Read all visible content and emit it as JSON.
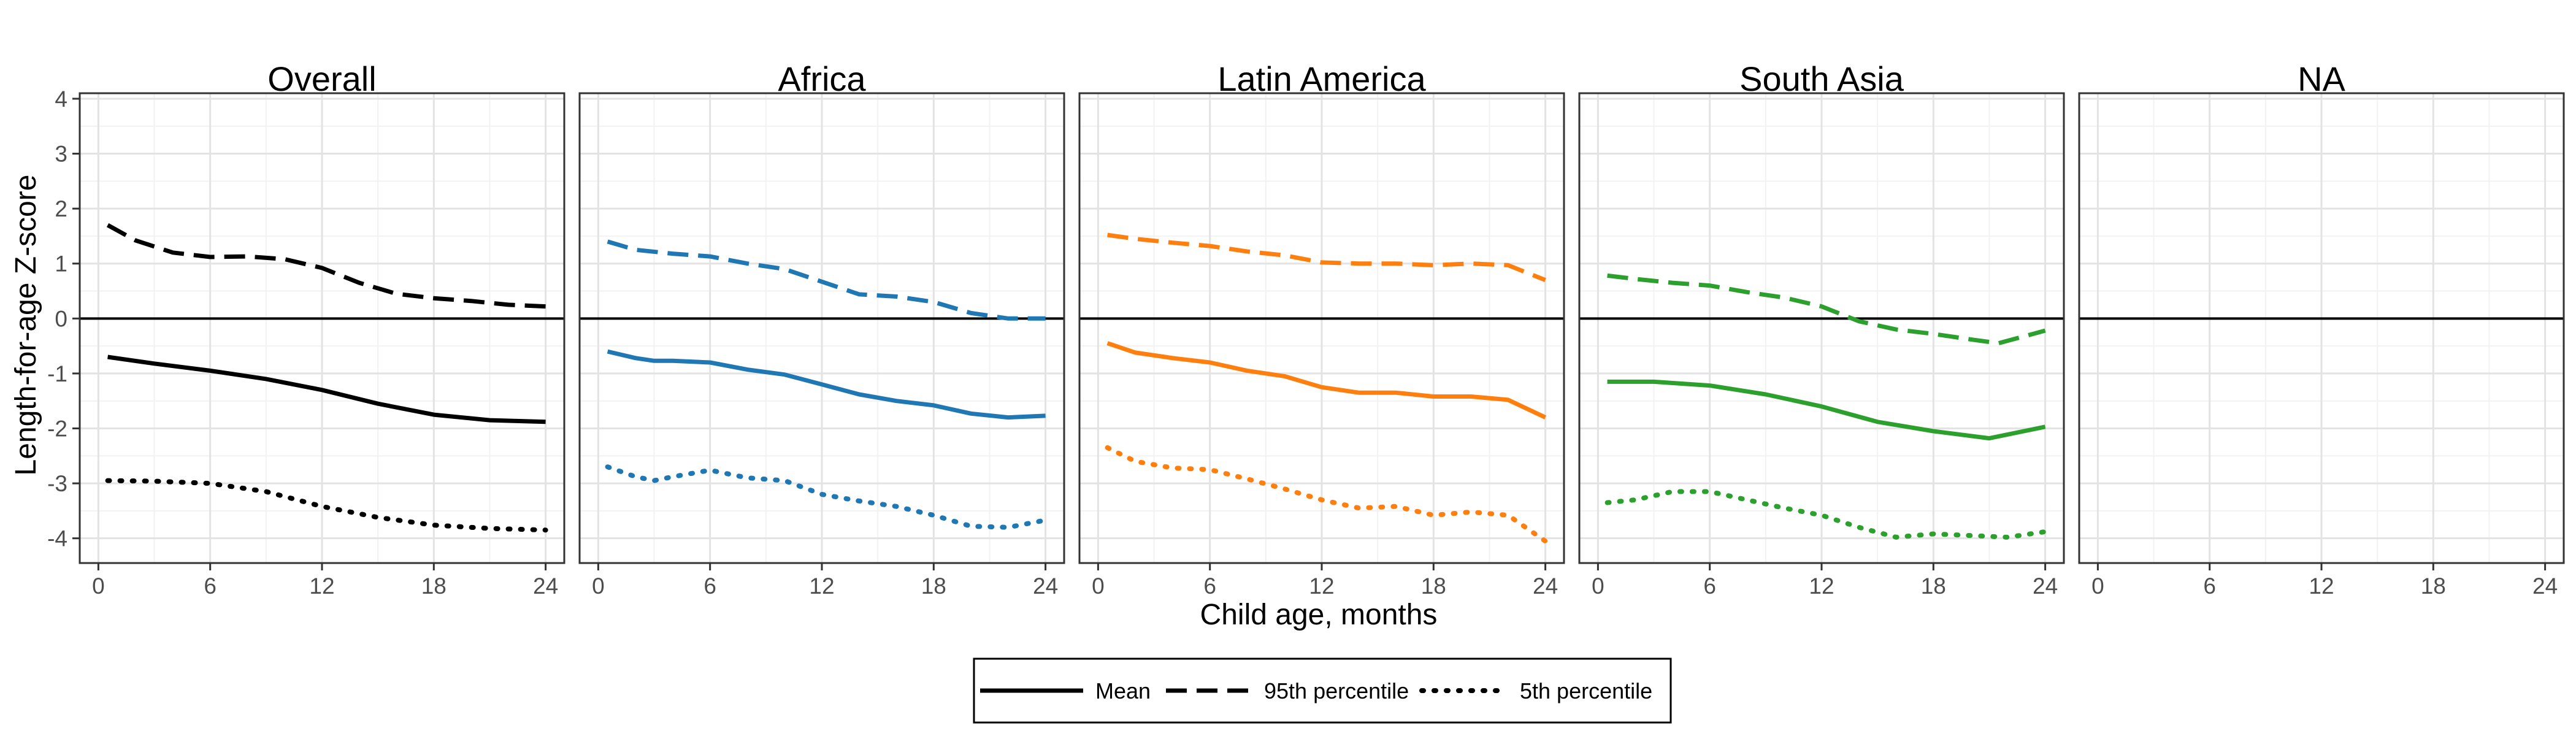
{
  "chart_data": {
    "type": "line",
    "xlabel": "Child age, months",
    "ylabel": "Length-for-age Z-score",
    "xlim": [
      -1,
      25
    ],
    "ylim": [
      -4.45,
      4.1
    ],
    "x_ticks": [
      0,
      6,
      12,
      18,
      24
    ],
    "y_ticks": [
      -4,
      -3,
      -2,
      -1,
      0,
      1,
      2,
      3,
      4
    ],
    "reference_line_y": 0,
    "grid": true,
    "legend_position": "bottom",
    "legend": [
      {
        "key": "mean",
        "label": "Mean",
        "dash": "solid"
      },
      {
        "key": "p95",
        "label": "95th percentile",
        "dash": "dashed"
      },
      {
        "key": "p5",
        "label": "5th percentile",
        "dash": "dotted"
      }
    ],
    "panels": [
      {
        "title": "Overall",
        "color": "#000000",
        "series": [
          {
            "key": "mean",
            "x": [
              0.5,
              3,
              6,
              9,
              12,
              15,
              18,
              21,
              24
            ],
            "y": [
              -0.7,
              -0.82,
              -0.95,
              -1.1,
              -1.3,
              -1.55,
              -1.75,
              -1.85,
              -1.88
            ]
          },
          {
            "key": "p95",
            "x": [
              0.5,
              2,
              4,
              6,
              8,
              10,
              12,
              14,
              16,
              18,
              20,
              22,
              24
            ],
            "y": [
              1.7,
              1.42,
              1.2,
              1.12,
              1.13,
              1.08,
              0.92,
              0.65,
              0.45,
              0.37,
              0.32,
              0.25,
              0.22
            ]
          },
          {
            "key": "p5",
            "x": [
              0.5,
              3,
              6,
              9,
              12,
              15,
              18,
              21,
              24
            ],
            "y": [
              -2.95,
              -2.96,
              -3.0,
              -3.15,
              -3.42,
              -3.62,
              -3.76,
              -3.82,
              -3.85
            ]
          }
        ]
      },
      {
        "title": "Africa",
        "color": "#1f77b4",
        "series": [
          {
            "key": "mean",
            "x": [
              0.5,
              2,
              3,
              4,
              6,
              8,
              10,
              12,
              14,
              16,
              18,
              20,
              22,
              24
            ],
            "y": [
              -0.6,
              -0.72,
              -0.77,
              -0.77,
              -0.8,
              -0.93,
              -1.02,
              -1.2,
              -1.38,
              -1.5,
              -1.58,
              -1.73,
              -1.8,
              -1.77
            ]
          },
          {
            "key": "p95",
            "x": [
              0.5,
              2,
              4,
              6,
              8,
              10,
              12,
              14,
              16,
              18,
              20,
              22,
              24
            ],
            "y": [
              1.4,
              1.25,
              1.18,
              1.13,
              1.0,
              0.9,
              0.67,
              0.44,
              0.4,
              0.3,
              0.1,
              0.0,
              0.0
            ]
          },
          {
            "key": "p5",
            "x": [
              0.5,
              2,
              3,
              4,
              6,
              8,
              10,
              12,
              14,
              16,
              18,
              20,
              22,
              24
            ],
            "y": [
              -2.7,
              -2.88,
              -2.95,
              -2.88,
              -2.76,
              -2.9,
              -2.95,
              -3.2,
              -3.32,
              -3.42,
              -3.58,
              -3.78,
              -3.8,
              -3.67
            ]
          }
        ]
      },
      {
        "title": "Latin America",
        "color": "#ff7f0e",
        "series": [
          {
            "key": "mean",
            "x": [
              0.5,
              2,
              4,
              6,
              8,
              10,
              12,
              14,
              16,
              18,
              20,
              22,
              24
            ],
            "y": [
              -0.45,
              -0.62,
              -0.72,
              -0.8,
              -0.95,
              -1.05,
              -1.25,
              -1.35,
              -1.35,
              -1.42,
              -1.42,
              -1.48,
              -1.8
            ]
          },
          {
            "key": "p95",
            "x": [
              0.5,
              2,
              4,
              6,
              8,
              10,
              12,
              14,
              16,
              18,
              20,
              22,
              24
            ],
            "y": [
              1.52,
              1.45,
              1.38,
              1.32,
              1.22,
              1.15,
              1.02,
              1.0,
              1.0,
              0.97,
              1.0,
              0.97,
              0.7
            ]
          },
          {
            "key": "p5",
            "x": [
              0.5,
              2,
              4,
              6,
              8,
              10,
              12,
              14,
              16,
              18,
              20,
              22,
              24
            ],
            "y": [
              -2.35,
              -2.6,
              -2.72,
              -2.75,
              -2.92,
              -3.1,
              -3.3,
              -3.45,
              -3.42,
              -3.58,
              -3.52,
              -3.58,
              -4.05
            ]
          }
        ]
      },
      {
        "title": "South Asia",
        "color": "#2ca02c",
        "series": [
          {
            "key": "mean",
            "x": [
              0.5,
              3,
              6,
              9,
              12,
              15,
              18,
              21,
              24
            ],
            "y": [
              -1.15,
              -1.15,
              -1.22,
              -1.38,
              -1.6,
              -1.88,
              -2.05,
              -2.18,
              -1.97
            ]
          },
          {
            "key": "p95",
            "x": [
              0.5,
              2,
              4,
              6,
              8,
              10,
              12,
              14,
              16,
              18,
              20,
              21.5,
              24
            ],
            "y": [
              0.78,
              0.72,
              0.65,
              0.6,
              0.48,
              0.38,
              0.22,
              -0.05,
              -0.2,
              -0.28,
              -0.38,
              -0.45,
              -0.22
            ]
          },
          {
            "key": "p5",
            "x": [
              0.5,
              2,
              4,
              6,
              8,
              10,
              12,
              14,
              16,
              18,
              20,
              22,
              24
            ],
            "y": [
              -3.35,
              -3.3,
              -3.15,
              -3.15,
              -3.3,
              -3.45,
              -3.58,
              -3.8,
              -3.98,
              -3.92,
              -3.95,
              -3.98,
              -3.88
            ]
          }
        ]
      },
      {
        "title": "NA",
        "color": "#000000",
        "series": []
      }
    ]
  }
}
